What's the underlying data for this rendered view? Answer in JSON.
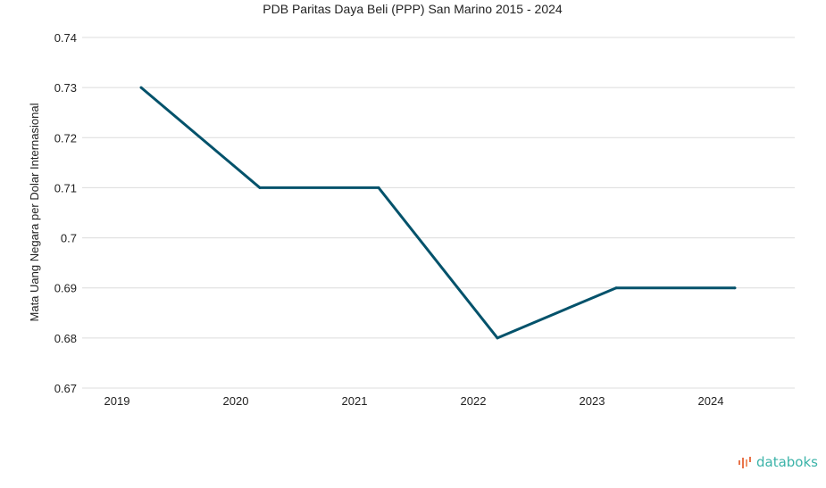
{
  "chart_data": {
    "type": "line",
    "title": "PDB Paritas Daya Beli (PPP) San Marino 2015 - 2024",
    "xlabel": "",
    "ylabel": "Mata Uang Negara per Dolar Internasional",
    "categories": [
      "2019",
      "2020",
      "2021",
      "2022",
      "2023",
      "2024"
    ],
    "series": [
      {
        "name": "PPP",
        "values": [
          0.73,
          0.71,
          0.71,
          0.68,
          0.69,
          0.69
        ],
        "color": "#03526b"
      }
    ],
    "ylim": [
      0.67,
      0.74
    ],
    "yticks": [
      "0.67",
      "0.68",
      "0.69",
      "0.7",
      "0.71",
      "0.72",
      "0.73",
      "0.74"
    ],
    "grid": true,
    "legend": "none"
  },
  "brand": {
    "name": "databoks",
    "color": "#3bb3a8",
    "accent": "#e8734a"
  }
}
